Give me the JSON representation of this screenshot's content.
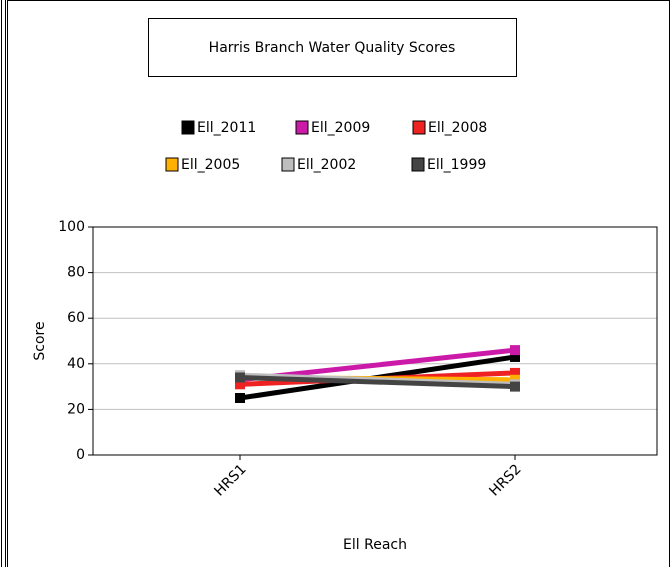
{
  "chart_data": {
    "type": "line",
    "title": "Harris Branch Water Quality Scores",
    "categories": [
      "HRS1",
      "HRS2"
    ],
    "series": [
      {
        "name": "Ell_2011",
        "color": "#000000",
        "values": [
          25,
          43
        ]
      },
      {
        "name": "Ell_2009",
        "color": "#cc1aa8",
        "values": [
          33,
          46
        ]
      },
      {
        "name": "Ell_2008",
        "color": "#ee2222",
        "values": [
          31,
          36
        ]
      },
      {
        "name": "Ell_2005",
        "color": "#ffb000",
        "values": [
          34,
          33
        ]
      },
      {
        "name": "Ell_2002",
        "color": "#bdbdbd",
        "values": [
          35,
          31
        ]
      },
      {
        "name": "Ell_1999",
        "color": "#444444",
        "values": [
          34,
          30
        ]
      }
    ],
    "x_label": "Ell Reach",
    "y_label": "Score",
    "ylim": [
      0,
      100
    ],
    "yticks": [
      0,
      20,
      40,
      60,
      80,
      100
    ],
    "grid": true
  }
}
